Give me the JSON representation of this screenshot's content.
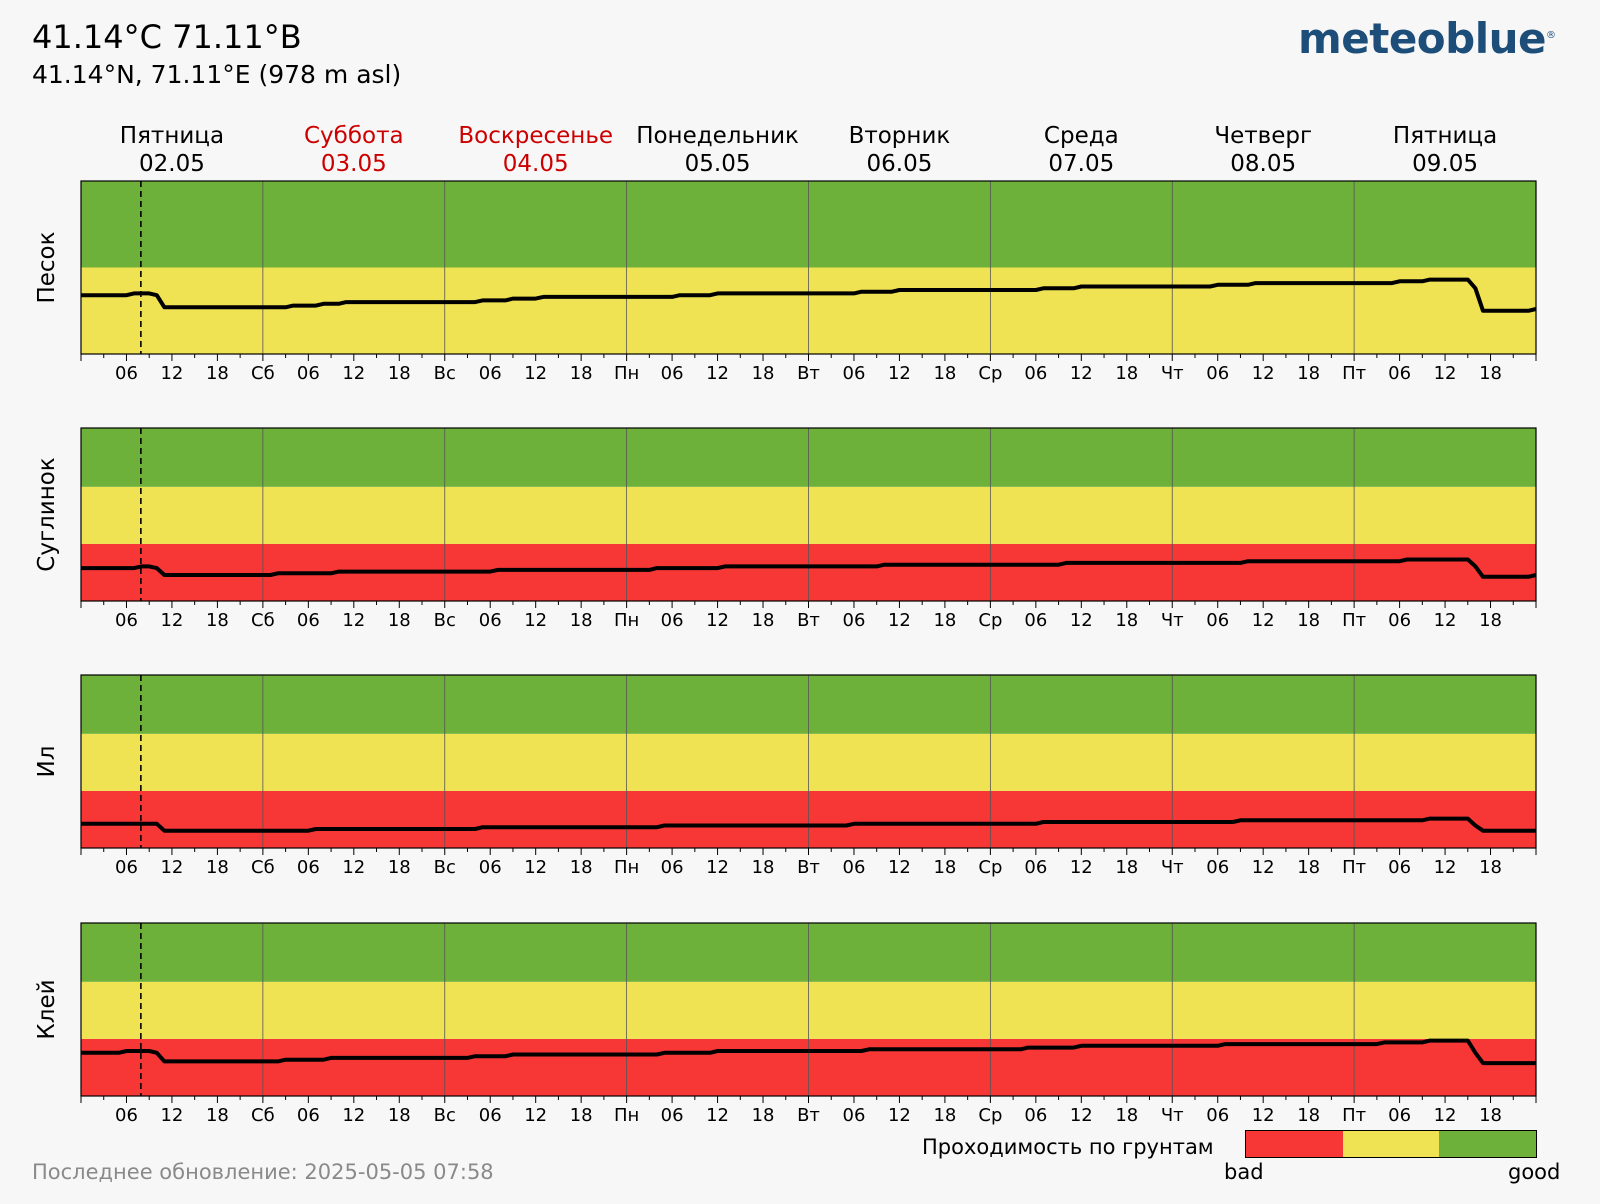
{
  "header": {
    "title": "41.14°C 71.11°B",
    "subtitle": "41.14°N, 71.11°E (978 m asl)",
    "logo": "meteoblue"
  },
  "footer": {
    "updated": "Последнее обновление: 2025-05-05 07:58"
  },
  "legend": {
    "title": "Проходимость по грунтам",
    "bad_label": "bad",
    "good_label": "good",
    "colors": [
      "#f73636",
      "#f0e353",
      "#6db03a"
    ]
  },
  "colors": {
    "red": "#f73636",
    "yellow": "#f0e353",
    "green": "#6db03a",
    "weekend_text": "#cc0000",
    "line": "#000000"
  },
  "chart_data": {
    "type": "line",
    "days": [
      {
        "name": "Пятница",
        "date": "02.05",
        "weekend": false,
        "abbr": ""
      },
      {
        "name": "Суббота",
        "date": "03.05",
        "weekend": true,
        "abbr": "Сб"
      },
      {
        "name": "Воскресенье",
        "date": "04.05",
        "weekend": true,
        "abbr": "Вс"
      },
      {
        "name": "Понедельник",
        "date": "05.05",
        "weekend": false,
        "abbr": "Пн"
      },
      {
        "name": "Вторник",
        "date": "06.05",
        "weekend": false,
        "abbr": "Вт"
      },
      {
        "name": "Среда",
        "date": "07.05",
        "weekend": false,
        "abbr": "Ср"
      },
      {
        "name": "Четверг",
        "date": "08.05",
        "weekend": false,
        "abbr": "Чт"
      },
      {
        "name": "Пятница",
        "date": "09.05",
        "weekend": false,
        "abbr": "Пт"
      }
    ],
    "hour_ticks": [
      "06",
      "12",
      "18"
    ],
    "now_hour": 7.9,
    "xlim_hours": [
      0,
      192
    ],
    "panels": [
      {
        "ylabel": "Песок",
        "bands": [
          {
            "color": "yellow",
            "from": 0,
            "to": 0.5
          },
          {
            "color": "green",
            "from": 0.5,
            "to": 1
          }
        ],
        "points": [
          [
            0,
            0.34
          ],
          [
            6,
            0.34
          ],
          [
            7,
            0.35
          ],
          [
            9,
            0.35
          ],
          [
            10,
            0.34
          ],
          [
            11,
            0.27
          ],
          [
            27,
            0.27
          ],
          [
            28,
            0.28
          ],
          [
            31,
            0.28
          ],
          [
            32,
            0.29
          ],
          [
            34,
            0.29
          ],
          [
            35,
            0.3
          ],
          [
            52,
            0.3
          ],
          [
            53,
            0.31
          ],
          [
            56,
            0.31
          ],
          [
            57,
            0.32
          ],
          [
            60,
            0.32
          ],
          [
            61,
            0.33
          ],
          [
            78,
            0.33
          ],
          [
            79,
            0.34
          ],
          [
            83,
            0.34
          ],
          [
            84,
            0.35
          ],
          [
            102,
            0.35
          ],
          [
            103,
            0.36
          ],
          [
            107,
            0.36
          ],
          [
            108,
            0.37
          ],
          [
            126,
            0.37
          ],
          [
            127,
            0.38
          ],
          [
            131,
            0.38
          ],
          [
            132,
            0.39
          ],
          [
            149,
            0.39
          ],
          [
            150,
            0.4
          ],
          [
            154,
            0.4
          ],
          [
            155,
            0.41
          ],
          [
            173,
            0.41
          ],
          [
            174,
            0.42
          ],
          [
            177,
            0.42
          ],
          [
            178,
            0.43
          ],
          [
            183,
            0.43
          ],
          [
            184,
            0.38
          ],
          [
            185,
            0.25
          ],
          [
            191,
            0.25
          ],
          [
            192,
            0.26
          ]
        ]
      },
      {
        "ylabel": "Суглинок",
        "bands": [
          {
            "color": "red",
            "from": 0,
            "to": 0.33
          },
          {
            "color": "yellow",
            "from": 0.33,
            "to": 0.66
          },
          {
            "color": "green",
            "from": 0.66,
            "to": 1
          }
        ],
        "points": [
          [
            0,
            0.19
          ],
          [
            7,
            0.19
          ],
          [
            8,
            0.2
          ],
          [
            9,
            0.2
          ],
          [
            10,
            0.19
          ],
          [
            11,
            0.15
          ],
          [
            25,
            0.15
          ],
          [
            26,
            0.16
          ],
          [
            33,
            0.16
          ],
          [
            34,
            0.17
          ],
          [
            54,
            0.17
          ],
          [
            55,
            0.18
          ],
          [
            75,
            0.18
          ],
          [
            76,
            0.19
          ],
          [
            84,
            0.19
          ],
          [
            85,
            0.2
          ],
          [
            105,
            0.2
          ],
          [
            106,
            0.21
          ],
          [
            129,
            0.21
          ],
          [
            130,
            0.22
          ],
          [
            153,
            0.22
          ],
          [
            154,
            0.23
          ],
          [
            174,
            0.23
          ],
          [
            175,
            0.24
          ],
          [
            183,
            0.24
          ],
          [
            184,
            0.2
          ],
          [
            185,
            0.14
          ],
          [
            191,
            0.14
          ],
          [
            192,
            0.15
          ]
        ]
      },
      {
        "ylabel": "Ил",
        "bands": [
          {
            "color": "red",
            "from": 0,
            "to": 0.33
          },
          {
            "color": "yellow",
            "from": 0.33,
            "to": 0.66
          },
          {
            "color": "green",
            "from": 0.66,
            "to": 1
          }
        ],
        "points": [
          [
            0,
            0.14
          ],
          [
            10,
            0.14
          ],
          [
            11,
            0.1
          ],
          [
            30,
            0.1
          ],
          [
            31,
            0.11
          ],
          [
            52,
            0.11
          ],
          [
            53,
            0.12
          ],
          [
            76,
            0.12
          ],
          [
            77,
            0.13
          ],
          [
            101,
            0.13
          ],
          [
            102,
            0.14
          ],
          [
            126,
            0.14
          ],
          [
            127,
            0.15
          ],
          [
            152,
            0.15
          ],
          [
            153,
            0.16
          ],
          [
            177,
            0.16
          ],
          [
            178,
            0.17
          ],
          [
            183,
            0.17
          ],
          [
            184,
            0.13
          ],
          [
            185,
            0.1
          ],
          [
            192,
            0.1
          ]
        ]
      },
      {
        "ylabel": "Клей",
        "bands": [
          {
            "color": "red",
            "from": 0,
            "to": 0.33
          },
          {
            "color": "yellow",
            "from": 0.33,
            "to": 0.66
          },
          {
            "color": "green",
            "from": 0.66,
            "to": 1
          }
        ],
        "points": [
          [
            0,
            0.25
          ],
          [
            5,
            0.25
          ],
          [
            6,
            0.26
          ],
          [
            9,
            0.26
          ],
          [
            10,
            0.25
          ],
          [
            11,
            0.2
          ],
          [
            26,
            0.2
          ],
          [
            27,
            0.21
          ],
          [
            32,
            0.21
          ],
          [
            33,
            0.22
          ],
          [
            51,
            0.22
          ],
          [
            52,
            0.23
          ],
          [
            56,
            0.23
          ],
          [
            57,
            0.24
          ],
          [
            76,
            0.24
          ],
          [
            77,
            0.25
          ],
          [
            83,
            0.25
          ],
          [
            84,
            0.26
          ],
          [
            103,
            0.26
          ],
          [
            104,
            0.27
          ],
          [
            124,
            0.27
          ],
          [
            125,
            0.28
          ],
          [
            131,
            0.28
          ],
          [
            132,
            0.29
          ],
          [
            150,
            0.29
          ],
          [
            151,
            0.3
          ],
          [
            171,
            0.3
          ],
          [
            172,
            0.31
          ],
          [
            177,
            0.31
          ],
          [
            178,
            0.32
          ],
          [
            183,
            0.32
          ],
          [
            184,
            0.25
          ],
          [
            185,
            0.19
          ],
          [
            192,
            0.19
          ]
        ]
      }
    ]
  }
}
